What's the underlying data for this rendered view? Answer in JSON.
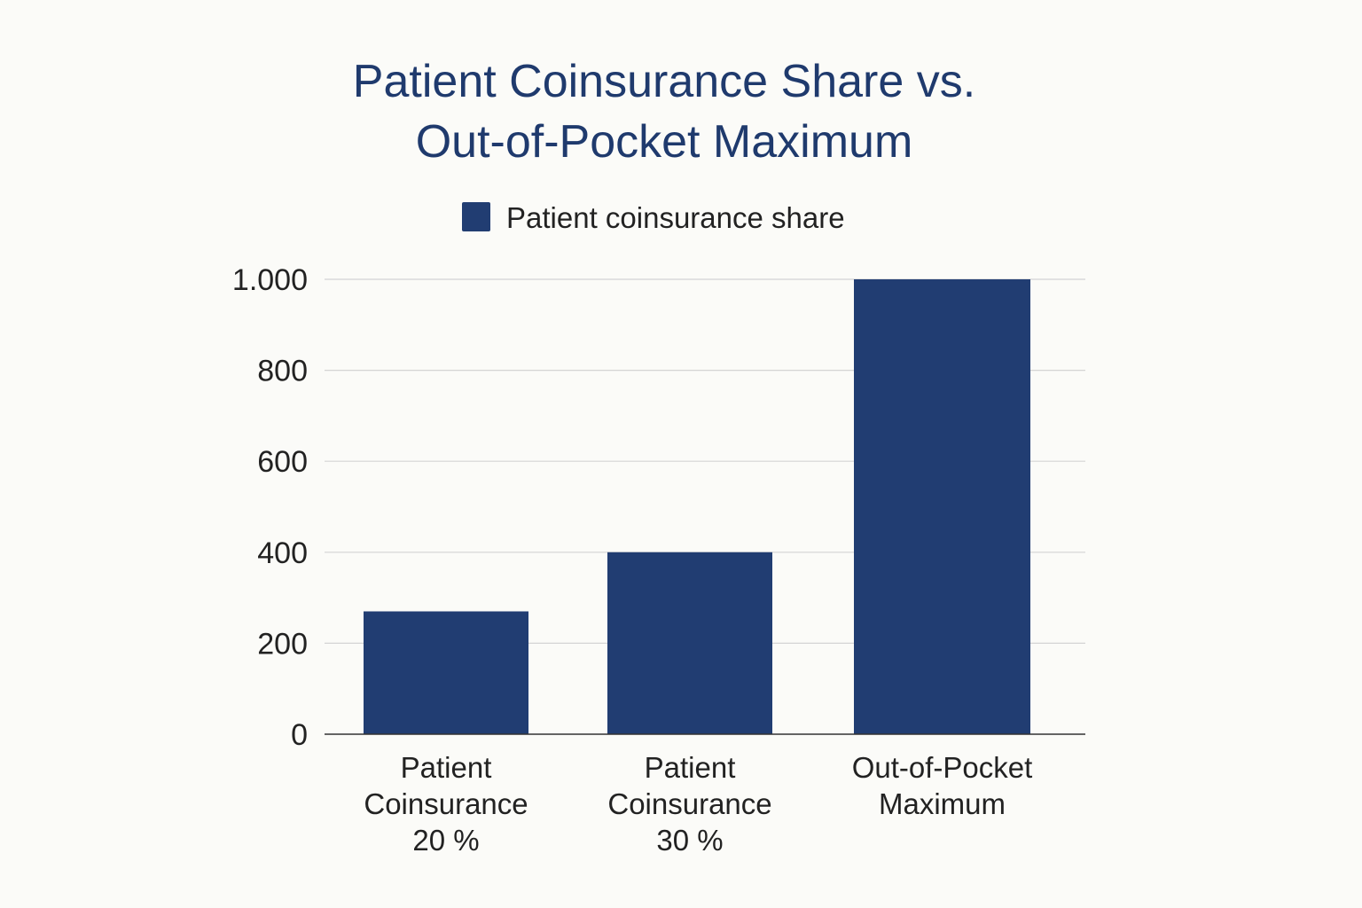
{
  "chart_data": {
    "type": "bar",
    "title_lines": [
      "Patient Coinsurance Share vs.",
      "Out-of-Pocket Maximum"
    ],
    "categories": [
      [
        "Patient",
        "Coinsurance",
        "20 %"
      ],
      [
        "Patient",
        "Coinsurance",
        "30 %"
      ],
      [
        "Out-of-Pocket",
        "Maximum"
      ]
    ],
    "series": [
      {
        "name": "Patient coinsurance share",
        "values": [
          270,
          400,
          1000
        ],
        "color": "#213d72"
      }
    ],
    "ylim": [
      0,
      1000
    ],
    "yticks": [
      0,
      200,
      400,
      600,
      800,
      1000
    ],
    "ytick_labels": [
      "0",
      "200",
      "400",
      "600",
      "800",
      "1.000"
    ],
    "xlabel": "",
    "ylabel": "",
    "grid": true,
    "legend_position": "top-center"
  }
}
